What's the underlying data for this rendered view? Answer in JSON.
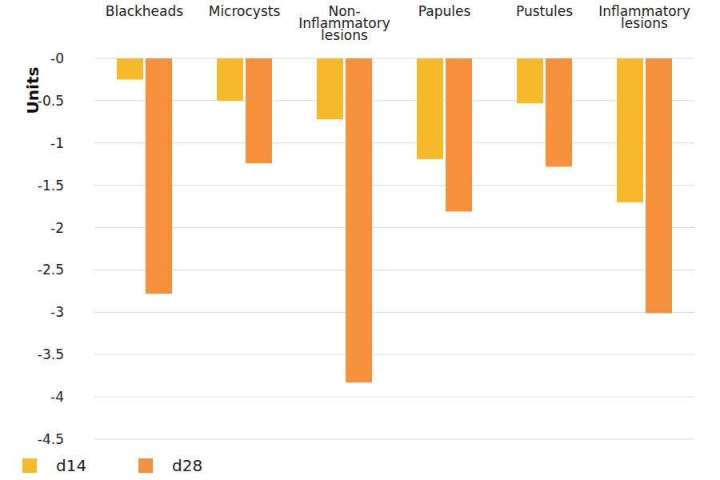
{
  "chart_data": {
    "type": "bar",
    "categories": [
      "Blackheads",
      "Microcysts",
      "Non-Inflammatory lesions",
      "Papules",
      "Pustules",
      "Inflammatory lesions"
    ],
    "series": [
      {
        "name": "d14",
        "color": "#f6b92b",
        "values": [
          -0.25,
          -0.5,
          -0.72,
          -1.19,
          -0.53,
          -1.7
        ]
      },
      {
        "name": "d28",
        "color": "#f5913d",
        "values": [
          -2.78,
          -1.24,
          -3.83,
          -1.81,
          -1.28,
          -3.01
        ]
      }
    ],
    "y_label": "Units",
    "ylim": [
      -4.5,
      0
    ],
    "yticks": [
      {
        "value": 0,
        "label": "-0"
      },
      -0.5,
      -1,
      -1.5,
      -2,
      -2.5,
      -3,
      -3.5,
      -4,
      -4.5
    ],
    "grid": true,
    "legend": "bottom-left"
  }
}
